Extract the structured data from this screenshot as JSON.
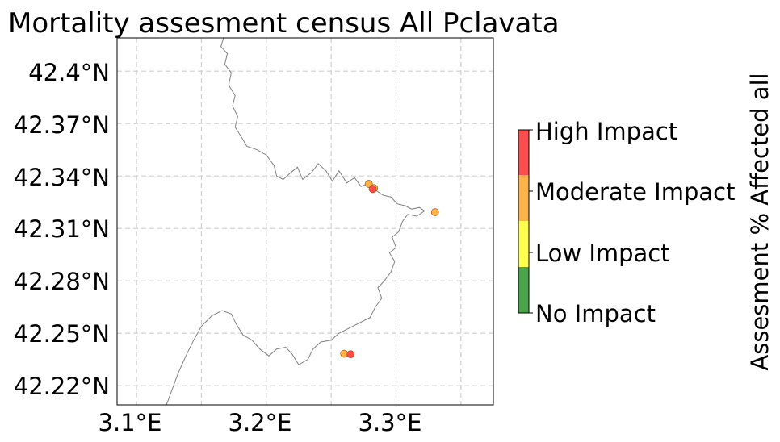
{
  "title": "Mortality assesment census All Pclavata",
  "x_ticks": [
    "3.1°E",
    "3.2°E",
    "3.3°E"
  ],
  "y_ticks": [
    "42.4°N",
    "42.37°N",
    "42.34°N",
    "42.31°N",
    "42.28°N",
    "42.25°N",
    "42.22°N"
  ],
  "colorbar": {
    "label": "Assesment % Affected all",
    "ticks": [
      "No Impact",
      "Low Impact",
      "Moderate Impact",
      "High Impact"
    ],
    "colors": [
      "#4aa54a",
      "#ffff4d",
      "#ffb347",
      "#ff4d4d"
    ]
  },
  "chart_data": {
    "type": "scatter",
    "title": "Mortality assesment census All Pclavata",
    "xlim": [
      3.085,
      3.375
    ],
    "ylim": [
      42.209,
      42.419
    ],
    "grid": true,
    "x_grid": [
      3.1,
      3.15,
      3.2,
      3.25,
      3.3,
      3.35
    ],
    "y_grid": [
      42.22,
      42.25,
      42.28,
      42.31,
      42.34,
      42.37,
      42.4
    ],
    "coastline": [
      [
        3.167,
        42.419
      ],
      [
        3.165,
        42.414
      ],
      [
        3.17,
        42.41
      ],
      [
        3.168,
        42.404
      ],
      [
        3.173,
        42.399
      ],
      [
        3.171,
        42.392
      ],
      [
        3.176,
        42.386
      ],
      [
        3.174,
        42.38
      ],
      [
        3.178,
        42.374
      ],
      [
        3.176,
        42.368
      ],
      [
        3.181,
        42.362
      ],
      [
        3.185,
        42.357
      ],
      [
        3.193,
        42.355
      ],
      [
        3.2,
        42.352
      ],
      [
        3.206,
        42.346
      ],
      [
        3.208,
        42.34
      ],
      [
        3.213,
        42.338
      ],
      [
        3.219,
        42.342
      ],
      [
        3.224,
        42.345
      ],
      [
        3.228,
        42.338
      ],
      [
        3.235,
        42.342
      ],
      [
        3.24,
        42.347
      ],
      [
        3.246,
        42.343
      ],
      [
        3.251,
        42.337
      ],
      [
        3.256,
        42.343
      ],
      [
        3.262,
        42.336
      ],
      [
        3.268,
        42.339
      ],
      [
        3.273,
        42.334
      ],
      [
        3.279,
        42.336
      ],
      [
        3.284,
        42.332
      ],
      [
        3.29,
        42.329
      ],
      [
        3.296,
        42.328
      ],
      [
        3.301,
        42.324
      ],
      [
        3.307,
        42.323
      ],
      [
        3.312,
        42.321
      ],
      [
        3.318,
        42.322
      ],
      [
        3.322,
        42.32
      ],
      [
        3.316,
        42.317
      ],
      [
        3.309,
        42.318
      ],
      [
        3.305,
        42.314
      ],
      [
        3.302,
        42.308
      ],
      [
        3.297,
        42.305
      ],
      [
        3.3,
        42.299
      ],
      [
        3.295,
        42.296
      ],
      [
        3.299,
        42.291
      ],
      [
        3.296,
        42.285
      ],
      [
        3.291,
        42.28
      ],
      [
        3.286,
        42.276
      ],
      [
        3.289,
        42.27
      ],
      [
        3.284,
        42.265
      ],
      [
        3.28,
        42.259
      ],
      [
        3.272,
        42.256
      ],
      [
        3.264,
        42.253
      ],
      [
        3.256,
        42.25
      ],
      [
        3.25,
        42.246
      ],
      [
        3.242,
        42.245
      ],
      [
        3.236,
        42.241
      ],
      [
        3.232,
        42.235
      ],
      [
        3.225,
        42.232
      ],
      [
        3.22,
        42.238
      ],
      [
        3.215,
        42.242
      ],
      [
        3.208,
        42.241
      ],
      [
        3.202,
        42.237
      ],
      [
        3.195,
        42.241
      ],
      [
        3.189,
        42.246
      ],
      [
        3.182,
        42.249
      ],
      [
        3.177,
        42.255
      ],
      [
        3.173,
        42.261
      ],
      [
        3.166,
        42.263
      ],
      [
        3.158,
        42.26
      ],
      [
        3.15,
        42.254
      ],
      [
        3.144,
        42.246
      ],
      [
        3.138,
        42.237
      ],
      [
        3.132,
        42.227
      ],
      [
        3.127,
        42.217
      ],
      [
        3.123,
        42.209
      ]
    ],
    "points": [
      {
        "lon": 3.279,
        "lat": 42.3355,
        "impact": "Moderate Impact"
      },
      {
        "lon": 3.283,
        "lat": 42.333,
        "impact": "Moderate Impact"
      },
      {
        "lon": 3.282,
        "lat": 42.3325,
        "impact": "High Impact"
      },
      {
        "lon": 3.33,
        "lat": 42.3193,
        "impact": "Moderate Impact"
      },
      {
        "lon": 3.26,
        "lat": 42.2383,
        "impact": "Moderate Impact"
      },
      {
        "lon": 3.265,
        "lat": 42.238,
        "impact": "High Impact"
      }
    ]
  }
}
